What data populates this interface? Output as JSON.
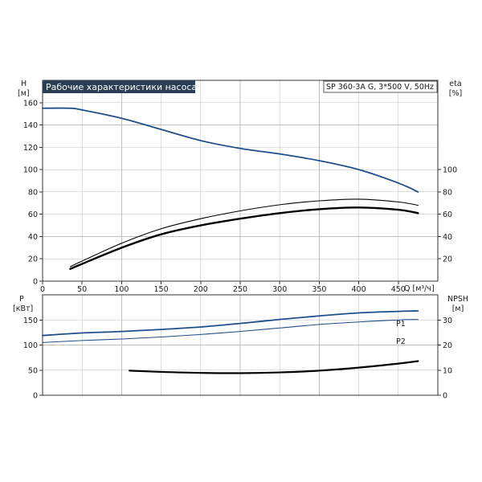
{
  "chart_data": [
    {
      "type": "line",
      "title": "Рабочие характеристики насоса",
      "subtitle": "SP 360-3A G, 3*500 V, 50Hz",
      "xlabel": "Q [м³/ч]",
      "ylabel_left": {
        "name": "H",
        "unit": "[м]"
      },
      "ylabel_right": {
        "name": "eta",
        "unit": "[%]"
      },
      "xlim": [
        0,
        500
      ],
      "ylim": [
        0,
        180
      ],
      "x_ticks": [
        0,
        50,
        100,
        150,
        200,
        250,
        300,
        350,
        400,
        450
      ],
      "y_ticks_left": [
        0,
        20,
        40,
        60,
        80,
        100,
        120,
        140,
        160
      ],
      "y_ticks_right": [
        20,
        40,
        60,
        80,
        100
      ],
      "grid": true,
      "colors": {
        "head": "#1f4e8c",
        "efficiency": "#000000",
        "title_bg": "#2c3e55"
      },
      "series": [
        {
          "axis": "left",
          "x": [
            0,
            35,
            50,
            100,
            150,
            200,
            250,
            300,
            350,
            400,
            450,
            475
          ],
          "values": [
            155,
            155,
            153.5,
            146,
            136,
            126,
            119,
            114,
            108,
            100,
            88,
            80
          ]
        },
        {
          "axis": "right",
          "x": [
            35,
            50,
            100,
            150,
            200,
            250,
            300,
            350,
            400,
            450,
            475
          ],
          "values": [
            13,
            18,
            34,
            47,
            56,
            63,
            68.5,
            72,
            73.5,
            71,
            68
          ]
        },
        {
          "axis": "right",
          "x": [
            35,
            50,
            100,
            150,
            200,
            250,
            300,
            350,
            400,
            450,
            475
          ],
          "values": [
            11,
            15.5,
            30,
            42,
            50,
            56,
            61,
            64.5,
            66,
            64,
            61
          ]
        }
      ]
    },
    {
      "type": "line",
      "ylabel_left": {
        "name": "P",
        "unit": "[кВт]"
      },
      "ylabel_right": {
        "name": "NPSH",
        "unit": "[м]"
      },
      "xlim": [
        0,
        500
      ],
      "ylim_left": [
        0,
        200
      ],
      "ylim_right": [
        0,
        40
      ],
      "y_ticks_left": [
        0,
        50,
        100,
        150
      ],
      "y_ticks_right": [
        0,
        10,
        20,
        30
      ],
      "grid": true,
      "colors": {
        "power": "#1f4e8c",
        "npsh": "#000000"
      },
      "series": [
        {
          "name": "P1",
          "axis": "left",
          "x": [
            0,
            50,
            100,
            150,
            200,
            250,
            300,
            350,
            400,
            450,
            475
          ],
          "values": [
            119,
            124,
            127,
            131,
            136,
            143,
            151,
            158,
            164,
            167,
            168
          ]
        },
        {
          "name": "P2",
          "axis": "left",
          "x": [
            0,
            50,
            100,
            150,
            200,
            250,
            300,
            350,
            400,
            450,
            475
          ],
          "values": [
            105,
            109,
            112,
            116,
            121,
            127,
            134,
            141,
            146,
            150,
            151
          ]
        },
        {
          "axis": "right",
          "x": [
            110,
            150,
            200,
            250,
            300,
            350,
            400,
            450,
            475
          ],
          "values": [
            9.8,
            9.3,
            8.9,
            8.8,
            9.1,
            9.8,
            11,
            12.6,
            13.6
          ]
        }
      ]
    }
  ]
}
